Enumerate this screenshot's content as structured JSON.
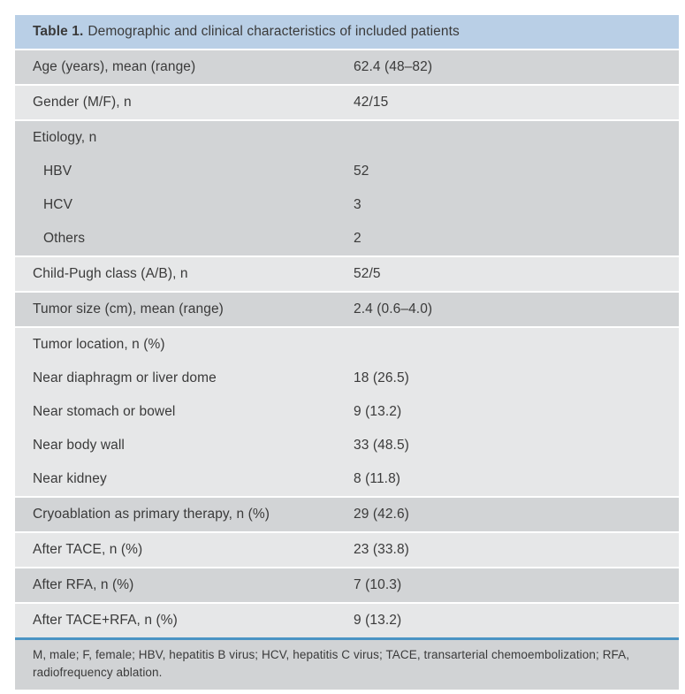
{
  "table": {
    "title": {
      "bold": "Table 1.",
      "rest": "Demographic and clinical characteristics of included patients"
    },
    "bands": [
      {
        "shade": "dark",
        "rows": [
          {
            "label": "Age (years), mean (range)",
            "value": "62.4 (48–82)",
            "indent": false
          }
        ]
      },
      {
        "shade": "light",
        "rows": [
          {
            "label": "Gender (M/F), n",
            "value": "42/15",
            "indent": false
          }
        ]
      },
      {
        "shade": "dark",
        "rows": [
          {
            "label": "Etiology, n",
            "value": "",
            "indent": false
          },
          {
            "label": "HBV",
            "value": "52",
            "indent": true
          },
          {
            "label": "HCV",
            "value": "3",
            "indent": true
          },
          {
            "label": "Others",
            "value": "2",
            "indent": true
          }
        ]
      },
      {
        "shade": "light",
        "rows": [
          {
            "label": "Child-Pugh class (A/B), n",
            "value": "52/5",
            "indent": false
          }
        ]
      },
      {
        "shade": "dark",
        "rows": [
          {
            "label": "Tumor size (cm), mean (range)",
            "value": "2.4 (0.6–4.0)",
            "indent": false
          }
        ]
      },
      {
        "shade": "light",
        "rows": [
          {
            "label": "Tumor location, n (%)",
            "value": "",
            "indent": false
          },
          {
            "label": "Near diaphragm or liver dome",
            "value": "18 (26.5)",
            "indent": false
          },
          {
            "label": "Near stomach or bowel",
            "value": "9 (13.2)",
            "indent": false
          },
          {
            "label": "Near body wall",
            "value": "33 (48.5)",
            "indent": false
          },
          {
            "label": "Near kidney",
            "value": "8 (11.8)",
            "indent": false
          }
        ]
      },
      {
        "shade": "dark",
        "rows": [
          {
            "label": "Cryoablation as primary therapy, n (%)",
            "value": "29 (42.6)",
            "indent": false
          }
        ]
      },
      {
        "shade": "light",
        "rows": [
          {
            "label": "After TACE, n (%)",
            "value": "23 (33.8)",
            "indent": false
          }
        ]
      },
      {
        "shade": "dark",
        "rows": [
          {
            "label": "After RFA, n (%)",
            "value": "7 (10.3)",
            "indent": false
          }
        ]
      },
      {
        "shade": "light",
        "rows": [
          {
            "label": "After TACE+RFA, n (%)",
            "value": "9 (13.2)",
            "indent": false
          }
        ]
      }
    ],
    "footnote": "M, male; F, female; HBV, hepatitis B virus; HCV, hepatitis C virus; TACE, transarterial chemoembolization; RFA, radiofrequency ablation.",
    "colors": {
      "header_bg": "#b9cfe6",
      "row_dark": "#d2d4d6",
      "row_light": "#e6e7e8",
      "footnote_bg": "#d1d3d5",
      "divider_blue": "#4a94c4",
      "text": "#3a3a3a"
    }
  }
}
